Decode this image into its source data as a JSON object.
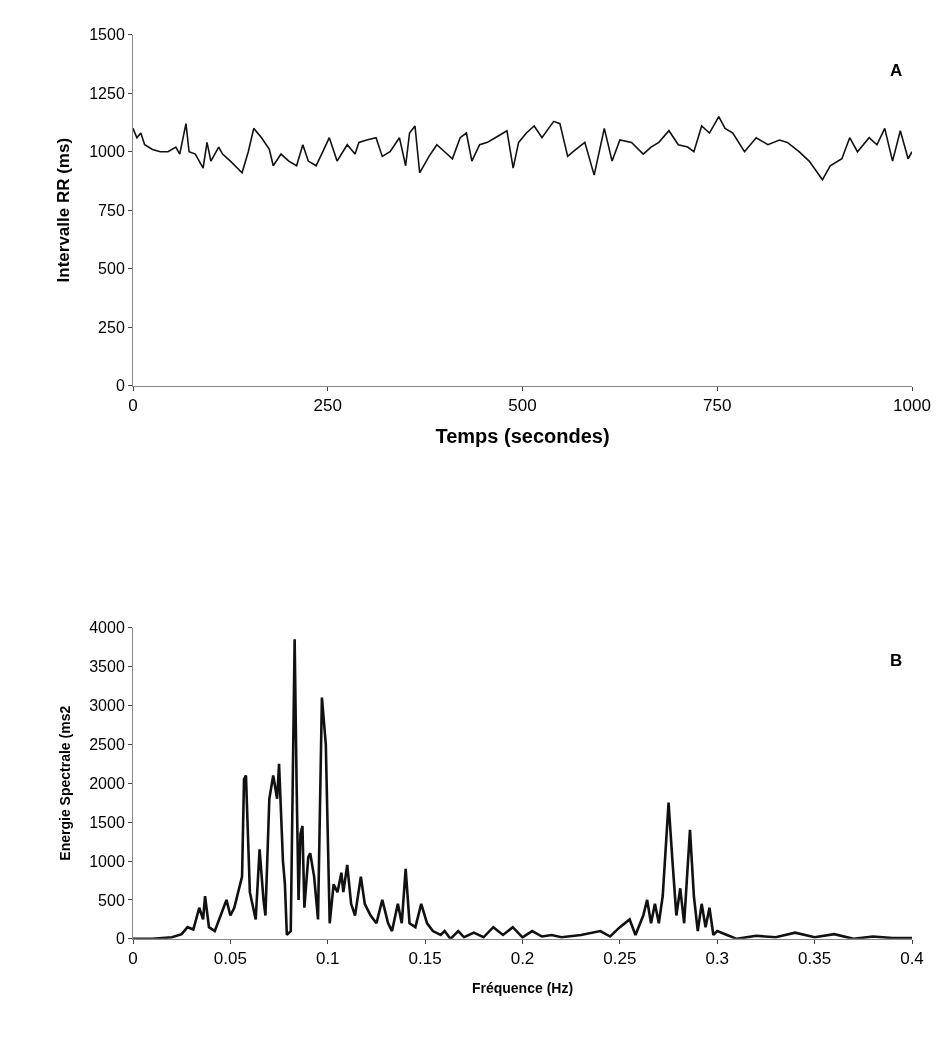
{
  "chart_data": [
    {
      "type": "line",
      "xlabel": "Temps (secondes)",
      "ylabel": "Intervalle RR (ms)",
      "annotations": [
        "A"
      ],
      "xlim": [
        0,
        1000
      ],
      "xticks": [
        0,
        250,
        500,
        750,
        1000
      ],
      "ylim": [
        0,
        1500
      ],
      "yticks": [
        0,
        250,
        500,
        750,
        1000,
        1250,
        1500
      ],
      "grid": false,
      "marker": "none",
      "line_style": "solid",
      "x": [
        0,
        5,
        10,
        15,
        25,
        35,
        45,
        55,
        60,
        68,
        72,
        80,
        90,
        95,
        100,
        110,
        115,
        125,
        140,
        148,
        155,
        165,
        175,
        180,
        190,
        200,
        210,
        218,
        225,
        235,
        245,
        252,
        262,
        275,
        285,
        290,
        300,
        312,
        320,
        330,
        342,
        350,
        355,
        362,
        368,
        380,
        390,
        400,
        410,
        420,
        428,
        435,
        445,
        455,
        465,
        480,
        488,
        495,
        505,
        515,
        525,
        540,
        548,
        558,
        565,
        580,
        592,
        605,
        615,
        625,
        640,
        655,
        665,
        675,
        688,
        700,
        712,
        720,
        730,
        740,
        752,
        760,
        770,
        785,
        800,
        815,
        830,
        840,
        855,
        868,
        885,
        895,
        910,
        920,
        930,
        945,
        955,
        965,
        975,
        985,
        995,
        1000
      ],
      "series": [
        {
          "color": "#111111",
          "values": [
            1100,
            1060,
            1080,
            1030,
            1010,
            1000,
            1000,
            1020,
            990,
            1120,
            1000,
            990,
            930,
            1040,
            960,
            1020,
            990,
            960,
            910,
            1000,
            1100,
            1060,
            1010,
            940,
            990,
            960,
            940,
            1030,
            960,
            940,
            1010,
            1060,
            960,
            1030,
            990,
            1040,
            1050,
            1060,
            980,
            1000,
            1060,
            940,
            1080,
            1110,
            910,
            980,
            1030,
            1000,
            970,
            1060,
            1080,
            960,
            1030,
            1040,
            1060,
            1090,
            930,
            1040,
            1080,
            1110,
            1060,
            1130,
            1120,
            980,
            1000,
            1040,
            900,
            1100,
            960,
            1050,
            1040,
            990,
            1020,
            1040,
            1090,
            1030,
            1020,
            1000,
            1110,
            1080,
            1150,
            1100,
            1080,
            1000,
            1060,
            1030,
            1050,
            1040,
            1000,
            960,
            880,
            940,
            970,
            1060,
            1000,
            1060,
            1030,
            1100,
            960,
            1090,
            970,
            1000
          ]
        }
      ]
    },
    {
      "type": "line",
      "xlabel": "Fréquence (Hz)",
      "ylabel": "Energie Spectrale (ms2",
      "annotations": [
        "B"
      ],
      "xlim": [
        0,
        0.4
      ],
      "xticks": [
        0,
        0.05,
        0.1,
        0.15,
        0.2,
        0.25,
        0.3,
        0.35,
        0.4
      ],
      "ylim": [
        0,
        4000
      ],
      "yticks": [
        0,
        500,
        1000,
        1500,
        2000,
        2500,
        3000,
        3500,
        4000
      ],
      "grid": false,
      "marker": "none",
      "line_style": "solid",
      "x": [
        0,
        0.01,
        0.02,
        0.025,
        0.028,
        0.031,
        0.034,
        0.036,
        0.037,
        0.039,
        0.042,
        0.045,
        0.048,
        0.05,
        0.052,
        0.054,
        0.056,
        0.057,
        0.058,
        0.06,
        0.063,
        0.065,
        0.067,
        0.068,
        0.07,
        0.072,
        0.074,
        0.075,
        0.077,
        0.078,
        0.079,
        0.081,
        0.083,
        0.084,
        0.085,
        0.086,
        0.087,
        0.088,
        0.09,
        0.091,
        0.093,
        0.095,
        0.097,
        0.099,
        0.101,
        0.103,
        0.105,
        0.107,
        0.108,
        0.11,
        0.112,
        0.114,
        0.117,
        0.119,
        0.122,
        0.125,
        0.128,
        0.131,
        0.133,
        0.136,
        0.138,
        0.14,
        0.142,
        0.145,
        0.148,
        0.151,
        0.154,
        0.158,
        0.16,
        0.163,
        0.167,
        0.17,
        0.175,
        0.18,
        0.185,
        0.19,
        0.195,
        0.2,
        0.205,
        0.21,
        0.215,
        0.22,
        0.23,
        0.24,
        0.245,
        0.25,
        0.255,
        0.258,
        0.262,
        0.264,
        0.266,
        0.268,
        0.27,
        0.272,
        0.275,
        0.277,
        0.279,
        0.281,
        0.283,
        0.286,
        0.288,
        0.29,
        0.292,
        0.294,
        0.296,
        0.298,
        0.3,
        0.305,
        0.31,
        0.32,
        0.33,
        0.34,
        0.35,
        0.36,
        0.37,
        0.38,
        0.39,
        0.4
      ],
      "series": [
        {
          "color": "#111111",
          "values": [
            0,
            0,
            20,
            60,
            150,
            120,
            400,
            250,
            550,
            150,
            100,
            300,
            500,
            300,
            400,
            600,
            800,
            2050,
            2100,
            600,
            250,
            1150,
            500,
            300,
            1800,
            2100,
            1800,
            2250,
            1000,
            700,
            50,
            100,
            3850,
            2000,
            500,
            1350,
            1450,
            400,
            1050,
            1100,
            800,
            250,
            3100,
            2500,
            200,
            700,
            600,
            850,
            600,
            950,
            450,
            300,
            800,
            450,
            300,
            200,
            500,
            200,
            100,
            450,
            200,
            900,
            200,
            150,
            450,
            200,
            100,
            50,
            100,
            0,
            100,
            20,
            80,
            20,
            150,
            50,
            150,
            20,
            100,
            30,
            50,
            20,
            50,
            100,
            30,
            150,
            250,
            50,
            300,
            500,
            200,
            450,
            200,
            550,
            1750,
            1000,
            300,
            650,
            200,
            1400,
            550,
            100,
            450,
            150,
            400,
            50,
            100,
            50,
            0,
            40,
            20,
            80,
            20,
            60,
            0,
            30,
            10,
            10
          ]
        }
      ]
    }
  ]
}
